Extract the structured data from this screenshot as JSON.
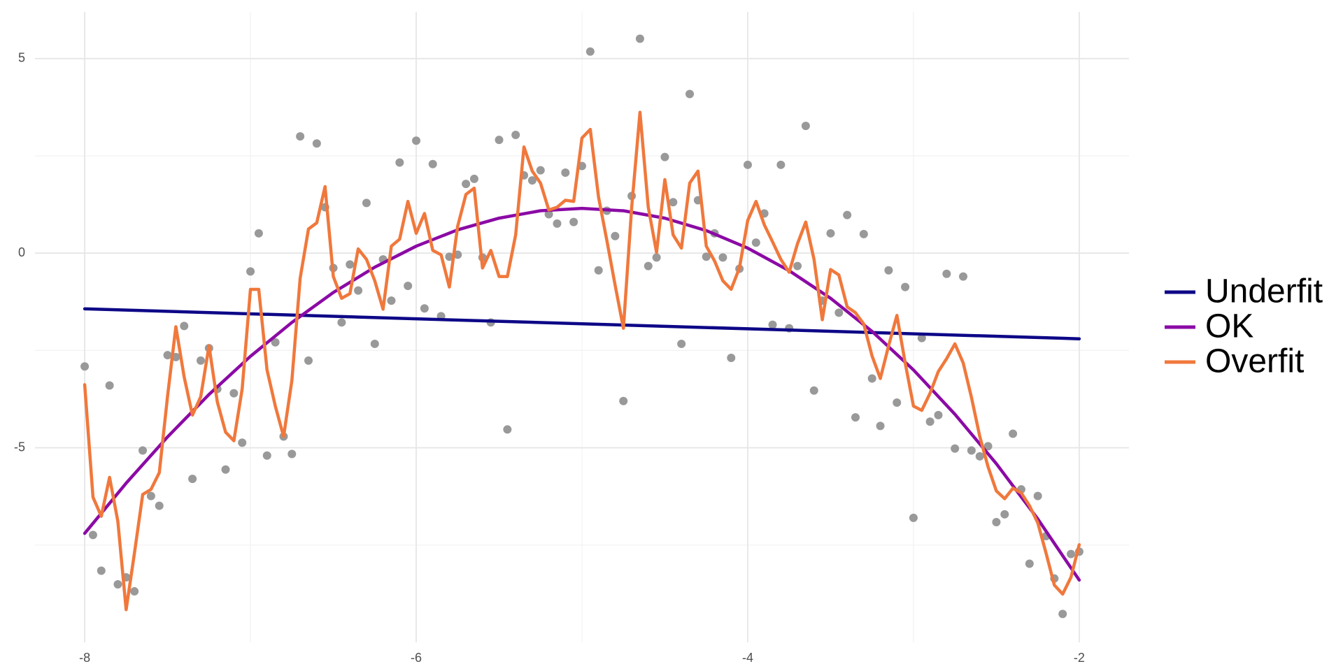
{
  "chart_data": {
    "type": "line",
    "xlim": [
      -8.3,
      -1.7
    ],
    "ylim": [
      -10,
      6.2
    ],
    "xticks": [
      -8,
      -6,
      -4,
      -2
    ],
    "yticks": [
      -5,
      0,
      5
    ],
    "xminor": [
      -7,
      -5,
      -3
    ],
    "yminor": [
      -7.5,
      -2.5,
      2.5
    ],
    "grid": true,
    "legend": "right",
    "points": {
      "color": "#999999",
      "x": [
        -8,
        -7.95,
        -7.9,
        -7.85,
        -7.8,
        -7.75,
        -7.7,
        -7.65,
        -7.6,
        -7.55,
        -7.5,
        -7.45,
        -7.4,
        -7.35,
        -7.3,
        -7.25,
        -7.2,
        -7.15,
        -7.1,
        -7.05,
        -7,
        -6.95,
        -6.9,
        -6.85,
        -6.8,
        -6.75,
        -6.7,
        -6.65,
        -6.6,
        -6.55,
        -6.5,
        -6.45,
        -6.4,
        -6.35,
        -6.3,
        -6.25,
        -6.2,
        -6.15,
        -6.1,
        -6.05,
        -6,
        -5.95,
        -5.9,
        -5.85,
        -5.8,
        -5.75,
        -5.7,
        -5.65,
        -5.6,
        -5.55,
        -5.5,
        -5.45,
        -5.4,
        -5.35,
        -5.3,
        -5.25,
        -5.2,
        -5.15,
        -5.1,
        -5.05,
        -5,
        -4.95,
        -4.9,
        -4.85,
        -4.8,
        -4.75,
        -4.7,
        -4.65,
        -4.6,
        -4.55,
        -4.5,
        -4.45,
        -4.4,
        -4.35,
        -4.3,
        -4.25,
        -4.2,
        -4.15,
        -4.1,
        -4.05,
        -4,
        -3.95,
        -3.9,
        -3.85,
        -3.8,
        -3.75,
        -3.7,
        -3.65,
        -3.6,
        -3.55,
        -3.5,
        -3.45,
        -3.4,
        -3.35,
        -3.3,
        -3.25,
        -3.2,
        -3.15,
        -3.1,
        -3.05,
        -3,
        -2.95,
        -2.9,
        -2.85,
        -2.8,
        -2.75,
        -2.7,
        -2.65,
        -2.6,
        -2.55,
        -2.5,
        -2.45,
        -2.4,
        -2.35,
        -2.3,
        -2.25,
        -2.2,
        -2.15,
        -2.1,
        -2.05,
        -2
      ],
      "values": [
        -2.91,
        -7.24,
        -8.16,
        -3.4,
        -8.51,
        -8.33,
        -8.69,
        -5.07,
        -6.24,
        -6.49,
        -2.62,
        -2.67,
        -1.87,
        -5.8,
        -2.76,
        -2.44,
        -3.49,
        -5.56,
        -3.6,
        -4.87,
        -0.47,
        0.51,
        -5.2,
        -2.29,
        -4.71,
        -5.16,
        3.0,
        -2.76,
        2.82,
        1.18,
        -0.38,
        -1.78,
        -0.29,
        -0.96,
        1.29,
        -2.33,
        -0.16,
        -1.22,
        2.33,
        -0.84,
        2.89,
        -1.42,
        2.29,
        -1.62,
        -0.09,
        -0.04,
        1.78,
        1.91,
        -0.11,
        -1.78,
        2.91,
        -4.53,
        3.04,
        2.0,
        1.87,
        2.13,
        1.0,
        0.76,
        2.07,
        0.8,
        2.24,
        5.18,
        -0.44,
        1.09,
        0.44,
        -3.8,
        1.47,
        5.51,
        -0.33,
        -0.11,
        2.47,
        1.31,
        -2.33,
        4.09,
        1.36,
        -0.09,
        0.51,
        -0.11,
        -2.69,
        -0.4,
        2.27,
        0.27,
        1.02,
        -1.84,
        2.27,
        -1.93,
        -0.33,
        3.27,
        -3.53,
        -1.22,
        0.51,
        -1.53,
        0.98,
        -4.22,
        0.49,
        -3.22,
        -4.44,
        -0.44,
        -3.84,
        -0.87,
        -6.8,
        -2.18,
        -4.33,
        -4.16,
        -0.53,
        -5.02,
        -0.6,
        -5.07,
        -5.22,
        -4.96,
        -6.91,
        -6.71,
        -4.64,
        -6.07,
        -7.98,
        -6.24,
        -7.27,
        -8.36,
        -9.27,
        -7.73,
        -7.67
      ]
    },
    "series": [
      {
        "name": "Underfit",
        "color": "#0d0887",
        "x": [
          -8,
          -2
        ],
        "values": [
          -1.43,
          -2.2
        ]
      },
      {
        "name": "OK",
        "color": "#8b0aa5",
        "x": [
          -8,
          -7.75,
          -7.5,
          -7.25,
          -7,
          -6.75,
          -6.5,
          -6.25,
          -6,
          -5.75,
          -5.5,
          -5.25,
          -5,
          -4.75,
          -4.5,
          -4.25,
          -4,
          -3.75,
          -3.5,
          -3.25,
          -3,
          -2.75,
          -2.5,
          -2.25,
          -2
        ],
        "values": [
          -7.2,
          -5.91,
          -4.72,
          -3.63,
          -2.65,
          -1.78,
          -1.01,
          -0.36,
          0.18,
          0.6,
          0.9,
          1.09,
          1.15,
          1.09,
          0.9,
          0.58,
          0.13,
          -0.45,
          -1.16,
          -2.01,
          -3.0,
          -4.14,
          -5.41,
          -6.83,
          -8.4
        ]
      },
      {
        "name": "Overfit",
        "color": "#f0783c",
        "x": [
          -8,
          -7.95,
          -7.9,
          -7.85,
          -7.8,
          -7.75,
          -7.7,
          -7.65,
          -7.6,
          -7.55,
          -7.5,
          -7.45,
          -7.4,
          -7.35,
          -7.3,
          -7.25,
          -7.2,
          -7.15,
          -7.1,
          -7.05,
          -7,
          -6.95,
          -6.9,
          -6.85,
          -6.8,
          -6.75,
          -6.7,
          -6.65,
          -6.6,
          -6.55,
          -6.5,
          -6.45,
          -6.4,
          -6.35,
          -6.3,
          -6.25,
          -6.2,
          -6.15,
          -6.1,
          -6.05,
          -6,
          -5.95,
          -5.9,
          -5.85,
          -5.8,
          -5.75,
          -5.7,
          -5.65,
          -5.6,
          -5.55,
          -5.5,
          -5.45,
          -5.4,
          -5.35,
          -5.3,
          -5.25,
          -5.2,
          -5.15,
          -5.1,
          -5.05,
          -5,
          -4.95,
          -4.9,
          -4.85,
          -4.8,
          -4.75,
          -4.7,
          -4.65,
          -4.6,
          -4.55,
          -4.5,
          -4.45,
          -4.4,
          -4.35,
          -4.3,
          -4.25,
          -4.2,
          -4.15,
          -4.1,
          -4.05,
          -4,
          -3.95,
          -3.9,
          -3.85,
          -3.8,
          -3.75,
          -3.7,
          -3.65,
          -3.6,
          -3.55,
          -3.5,
          -3.45,
          -3.4,
          -3.35,
          -3.3,
          -3.25,
          -3.2,
          -3.15,
          -3.1,
          -3.05,
          -3,
          -2.95,
          -2.9,
          -2.85,
          -2.8,
          -2.75,
          -2.7,
          -2.65,
          -2.6,
          -2.55,
          -2.5,
          -2.45,
          -2.4,
          -2.35,
          -2.3,
          -2.25,
          -2.2,
          -2.15,
          -2.1,
          -2.05,
          -2
        ],
        "values": [
          -3.38,
          -6.27,
          -6.76,
          -5.76,
          -6.89,
          -9.16,
          -7.71,
          -6.2,
          -6.07,
          -5.64,
          -3.67,
          -1.89,
          -3.18,
          -4.16,
          -3.69,
          -2.38,
          -3.82,
          -4.6,
          -4.82,
          -3.49,
          -0.93,
          -0.93,
          -3.0,
          -3.93,
          -4.71,
          -3.27,
          -0.64,
          0.62,
          0.78,
          1.71,
          -0.6,
          -1.16,
          -1.04,
          0.11,
          -0.16,
          -0.71,
          -1.44,
          0.18,
          0.36,
          1.33,
          0.51,
          1.02,
          0.07,
          -0.04,
          -0.87,
          0.69,
          1.51,
          1.67,
          -0.38,
          0.07,
          -0.6,
          -0.6,
          0.47,
          2.73,
          2.11,
          1.8,
          1.11,
          1.18,
          1.36,
          1.33,
          2.96,
          3.18,
          1.44,
          0.33,
          -0.82,
          -1.93,
          1.18,
          3.62,
          1.18,
          0.02,
          1.89,
          0.47,
          0.13,
          1.8,
          2.11,
          0.18,
          -0.2,
          -0.71,
          -0.93,
          -0.38,
          0.84,
          1.33,
          0.73,
          0.29,
          -0.16,
          -0.49,
          0.24,
          0.8,
          -0.16,
          -1.71,
          -0.42,
          -0.56,
          -1.38,
          -1.53,
          -1.82,
          -2.64,
          -3.22,
          -2.38,
          -1.6,
          -2.82,
          -3.93,
          -4.04,
          -3.6,
          -3.04,
          -2.71,
          -2.33,
          -2.82,
          -3.71,
          -4.71,
          -5.49,
          -6.11,
          -6.31,
          -6.04,
          -6.16,
          -6.49,
          -6.93,
          -7.71,
          -8.53,
          -8.76,
          -8.33,
          -7.49
        ]
      }
    ]
  }
}
